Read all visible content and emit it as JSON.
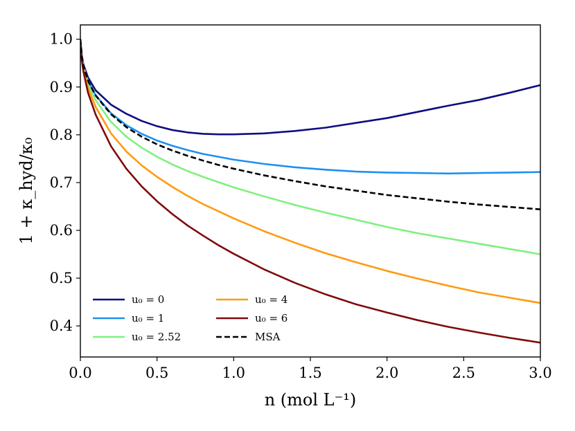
{
  "chart_data": {
    "type": "line",
    "title": "",
    "xlabel": "n (mol L⁻¹)",
    "ylabel": "1 + κ_hyd/κ₀",
    "xlim": [
      0.0,
      3.0
    ],
    "ylim": [
      0.335,
      1.03
    ],
    "xticks": [
      0.0,
      0.5,
      1.0,
      1.5,
      2.0,
      2.5,
      3.0
    ],
    "xtick_labels": [
      "0.0",
      "0.5",
      "1.0",
      "1.5",
      "2.0",
      "2.5",
      "3.0"
    ],
    "yticks": [
      0.4,
      0.5,
      0.6,
      0.7,
      0.8,
      0.9,
      1.0
    ],
    "ytick_labels": [
      "0.4",
      "0.5",
      "0.6",
      "0.7",
      "0.8",
      "0.9",
      "1.0"
    ],
    "grid": false,
    "legend_position": "lower-left",
    "series": [
      {
        "name": "u₀ = 0",
        "color": "#0d0d82",
        "dash": "solid",
        "x": [
          0.0,
          0.01,
          0.02,
          0.05,
          0.1,
          0.2,
          0.3,
          0.4,
          0.5,
          0.6,
          0.7,
          0.8,
          0.9,
          1.0,
          1.2,
          1.4,
          1.6,
          1.8,
          2.0,
          2.2,
          2.4,
          2.6,
          2.8,
          3.0
        ],
        "y": [
          1.0,
          0.965,
          0.947,
          0.92,
          0.893,
          0.863,
          0.844,
          0.829,
          0.818,
          0.81,
          0.805,
          0.802,
          0.801,
          0.801,
          0.803,
          0.808,
          0.815,
          0.825,
          0.835,
          0.848,
          0.861,
          0.873,
          0.888,
          0.904
        ]
      },
      {
        "name": "u₀ = 1",
        "color": "#1e90ee",
        "dash": "solid",
        "x": [
          0.0,
          0.01,
          0.02,
          0.05,
          0.1,
          0.2,
          0.3,
          0.4,
          0.5,
          0.6,
          0.7,
          0.8,
          0.9,
          1.0,
          1.2,
          1.4,
          1.6,
          1.8,
          2.0,
          2.2,
          2.4,
          2.6,
          2.8,
          3.0
        ],
        "y": [
          1.0,
          0.962,
          0.944,
          0.913,
          0.883,
          0.845,
          0.82,
          0.802,
          0.788,
          0.777,
          0.768,
          0.76,
          0.754,
          0.748,
          0.739,
          0.732,
          0.727,
          0.723,
          0.721,
          0.72,
          0.719,
          0.72,
          0.721,
          0.722
        ]
      },
      {
        "name": "u₀ = 2.52",
        "color": "#7ff07f",
        "dash": "solid",
        "x": [
          0.0,
          0.01,
          0.02,
          0.05,
          0.1,
          0.2,
          0.3,
          0.4,
          0.5,
          0.6,
          0.7,
          0.8,
          0.9,
          1.0,
          1.2,
          1.4,
          1.6,
          1.8,
          2.0,
          2.2,
          2.4,
          2.6,
          2.8,
          3.0
        ],
        "y": [
          1.0,
          0.96,
          0.941,
          0.906,
          0.872,
          0.827,
          0.796,
          0.773,
          0.754,
          0.738,
          0.724,
          0.712,
          0.701,
          0.69,
          0.671,
          0.653,
          0.637,
          0.622,
          0.607,
          0.594,
          0.583,
          0.572,
          0.561,
          0.55
        ]
      },
      {
        "name": "u₀ = 4",
        "color": "#ff9a10",
        "dash": "solid",
        "x": [
          0.0,
          0.01,
          0.02,
          0.05,
          0.1,
          0.2,
          0.3,
          0.4,
          0.5,
          0.6,
          0.7,
          0.8,
          0.9,
          1.0,
          1.2,
          1.4,
          1.6,
          1.8,
          2.0,
          2.2,
          2.4,
          2.6,
          2.8,
          3.0
        ],
        "y": [
          1.0,
          0.958,
          0.937,
          0.898,
          0.858,
          0.803,
          0.765,
          0.736,
          0.712,
          0.691,
          0.672,
          0.655,
          0.64,
          0.625,
          0.598,
          0.574,
          0.552,
          0.533,
          0.515,
          0.499,
          0.484,
          0.47,
          0.459,
          0.448
        ]
      },
      {
        "name": "u₀ = 6",
        "color": "#7f0a0a",
        "dash": "solid",
        "x": [
          0.0,
          0.01,
          0.02,
          0.05,
          0.1,
          0.2,
          0.3,
          0.4,
          0.5,
          0.6,
          0.7,
          0.8,
          0.9,
          1.0,
          1.2,
          1.4,
          1.6,
          1.8,
          2.0,
          2.2,
          2.4,
          2.6,
          2.8,
          3.0
        ],
        "y": [
          1.0,
          0.955,
          0.932,
          0.888,
          0.842,
          0.776,
          0.729,
          0.692,
          0.661,
          0.634,
          0.61,
          0.589,
          0.569,
          0.551,
          0.518,
          0.49,
          0.466,
          0.445,
          0.428,
          0.412,
          0.398,
          0.386,
          0.375,
          0.365
        ]
      },
      {
        "name": "MSA",
        "color": "#000000",
        "dash": "dashed",
        "x": [
          0.0,
          0.01,
          0.02,
          0.05,
          0.1,
          0.2,
          0.3,
          0.4,
          0.5,
          0.6,
          0.7,
          0.8,
          0.9,
          1.0,
          1.2,
          1.4,
          1.6,
          1.8,
          2.0,
          2.2,
          2.4,
          2.6,
          2.8,
          3.0
        ],
        "y": [
          1.0,
          0.962,
          0.944,
          0.913,
          0.882,
          0.843,
          0.816,
          0.796,
          0.78,
          0.767,
          0.756,
          0.746,
          0.737,
          0.729,
          0.715,
          0.703,
          0.692,
          0.683,
          0.674,
          0.667,
          0.66,
          0.654,
          0.649,
          0.644
        ]
      }
    ]
  }
}
